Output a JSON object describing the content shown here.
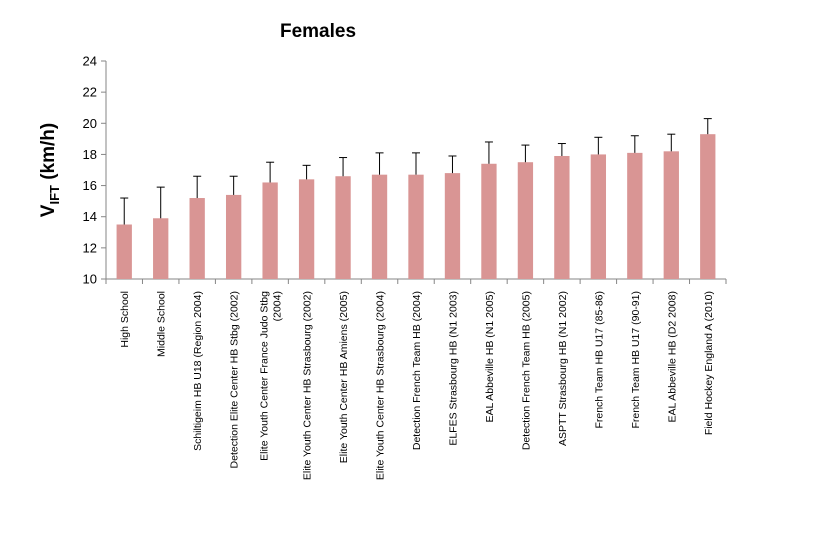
{
  "chart_data": {
    "type": "bar",
    "title": "Females",
    "ylabel": {
      "main": "V",
      "sub": "IFT",
      "rest": " (km/h)"
    },
    "xlabel": "",
    "ylim": [
      10,
      24
    ],
    "yticks": [
      10,
      12,
      14,
      16,
      18,
      20,
      22,
      24
    ],
    "grid": false,
    "legend": "none",
    "bar_color": "#d99594",
    "categories": [
      [
        "High School"
      ],
      [
        "Middle School"
      ],
      [
        "Schiltigeim HB U18 (Region 2004)"
      ],
      [
        "Detection Elite Center HB Stbg (2002)"
      ],
      [
        "Elite Youth Center  France Judo Stbg",
        "(2004)"
      ],
      [
        "Elite Youth Center    HB Strasbourg (2002)"
      ],
      [
        "Elite Youth Center    HB Amiens (2005)"
      ],
      [
        "Elite Youth Center    HB Strasbourg (2004)"
      ],
      [
        "Detection French Team HB (2004)"
      ],
      [
        "ELFES Strasbourg HB (N1 2003)"
      ],
      [
        "EAL Abbeville HB (N1 2005)"
      ],
      [
        "Detection French Team HB (2005)"
      ],
      [
        "ASPTT Strasbourg HB (N1 2002)"
      ],
      [
        "French Team HB U17 (85-86)"
      ],
      [
        "French Team HB U17 (90-91)"
      ],
      [
        "EAL Abbeville HB (D2 2008)"
      ],
      [
        "Field Hockey England A (2010)"
      ]
    ],
    "values": [
      13.5,
      13.9,
      15.2,
      15.4,
      16.2,
      16.4,
      16.6,
      16.7,
      16.7,
      16.8,
      17.4,
      17.5,
      17.9,
      18.0,
      18.1,
      18.2,
      19.3
    ],
    "error_upper": [
      15.2,
      15.9,
      16.6,
      16.6,
      17.5,
      17.3,
      17.8,
      18.1,
      18.1,
      17.9,
      18.8,
      18.6,
      18.7,
      19.1,
      19.2,
      19.3,
      20.3
    ]
  }
}
